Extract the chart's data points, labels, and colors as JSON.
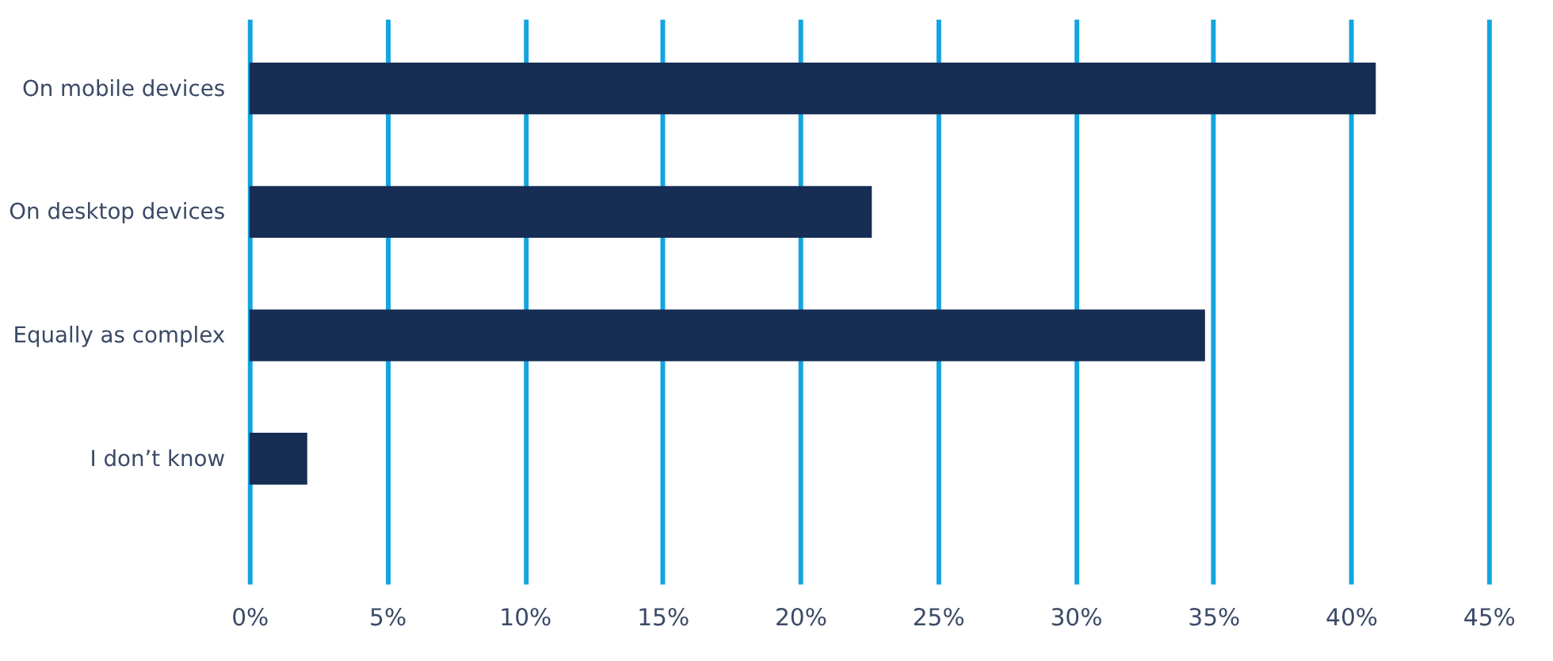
{
  "chart_data": {
    "type": "bar",
    "orientation": "horizontal",
    "categories": [
      "On mobile devices",
      "On desktop devices",
      "Equally as complex",
      "I don’t know"
    ],
    "values": [
      40.9,
      22.6,
      34.7,
      2.1
    ],
    "color": "#162d54",
    "xlim": [
      0,
      45
    ],
    "xticks": [
      {
        "value": 0,
        "label": "0%"
      },
      {
        "value": 5,
        "label": "5%"
      },
      {
        "value": 10,
        "label": "10%"
      },
      {
        "value": 15,
        "label": "15%"
      },
      {
        "value": 20,
        "label": "20%"
      },
      {
        "value": 25,
        "label": "25%"
      },
      {
        "value": 30,
        "label": "30%"
      },
      {
        "value": 35,
        "label": "35%"
      },
      {
        "value": 40,
        "label": "40%"
      },
      {
        "value": 45,
        "label": "45%"
      }
    ],
    "grid": "x"
  }
}
